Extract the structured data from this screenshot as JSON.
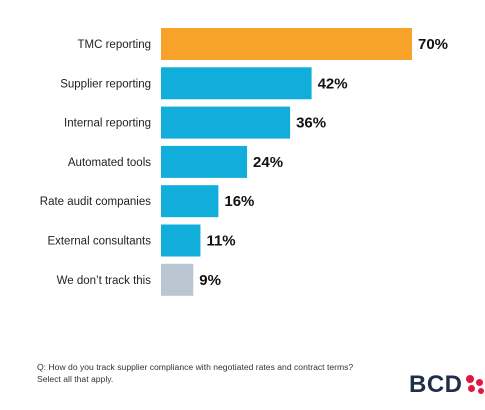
{
  "chart_data": {
    "type": "bar",
    "orientation": "horizontal",
    "categories": [
      "TMC reporting",
      "Supplier reporting",
      "Internal reporting",
      "Automated tools",
      "Rate audit companies",
      "External consultants",
      "We don’t track this"
    ],
    "values": [
      70,
      42,
      36,
      24,
      16,
      11,
      9
    ],
    "value_labels": [
      "70%",
      "42%",
      "36%",
      "24%",
      "16%",
      "11%",
      "9%"
    ],
    "bar_colors": [
      "#F7A22B",
      "#12AEDB",
      "#12AEDB",
      "#12AEDB",
      "#12AEDB",
      "#12AEDB",
      "#B9C6D1"
    ],
    "unit": "%",
    "xlim": [
      0,
      70
    ],
    "grid": false,
    "legend": "none"
  },
  "footnote": "Q: How do you track supplier compliance with negotiated rates and contract terms? Select all that apply.",
  "logo": {
    "text": "BCD",
    "accent_color": "#E3173E"
  }
}
